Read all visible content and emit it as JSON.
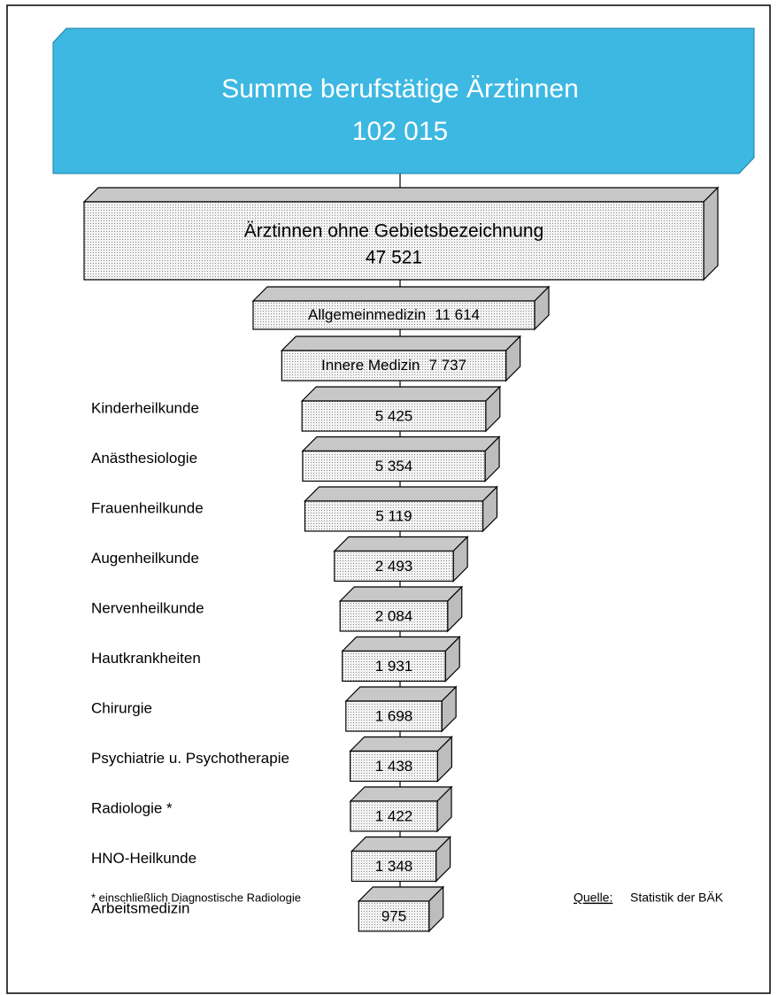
{
  "chart_data": {
    "type": "funnel",
    "title": "Summe berufstätige Ärztinnen",
    "total": 102015,
    "total_label": "102 015",
    "categories": [
      "Ärztinnen ohne Gebietsbezeichnung",
      "Allgemeinmedizin",
      "Innere Medizin",
      "Kinderheilkunde",
      "Anästhesiologie",
      "Frauenheilkunde",
      "Augenheilkunde",
      "Nervenheilkunde",
      "Hautkrankheiten",
      "Chirurgie",
      "Psychiatrie u. Psychotherapie",
      "Radiologie *",
      "HNO-Heilkunde",
      "Arbeitsmedizin"
    ],
    "values": [
      47521,
      11614,
      7737,
      5425,
      5354,
      5119,
      2493,
      2084,
      1931,
      1698,
      1438,
      1422,
      1348,
      975
    ],
    "value_labels": [
      "47 521",
      "11 614",
      "7 737",
      "5 425",
      "5 354",
      "5 119",
      "2 493",
      "2 084",
      "1 931",
      "1 698",
      "1 438",
      "1 422",
      "1 348",
      "975"
    ],
    "color": "#3db8e2",
    "footnote": "* einschließlich Diagnostische Radiologie",
    "source_label": "Quelle:",
    "source": "Statistik der BÄK"
  }
}
